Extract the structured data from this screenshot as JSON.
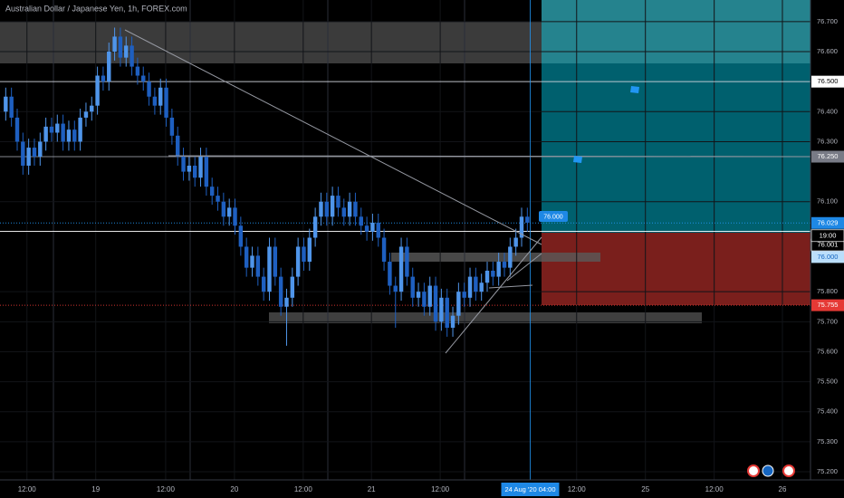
{
  "chart_data": {
    "type": "candlestick",
    "title": "Australian Dollar / Japanese Yen, 1h, FOREX.com",
    "x": [
      1,
      2,
      3,
      4,
      5,
      6,
      7,
      8,
      9,
      10,
      11,
      12,
      13,
      14,
      15,
      16,
      17,
      18,
      19,
      20,
      21,
      22,
      23,
      24,
      25,
      26,
      27,
      28,
      29,
      30,
      31,
      32,
      33,
      34,
      35,
      36,
      37,
      38,
      39,
      40,
      41,
      42,
      43,
      44,
      45,
      46,
      47,
      48,
      49,
      50,
      51,
      52,
      53,
      54,
      55,
      56,
      57,
      58,
      59,
      60,
      61,
      62,
      63,
      64,
      65,
      66,
      67,
      68,
      69,
      70,
      71,
      72,
      73,
      74,
      75,
      76,
      77,
      78,
      79,
      80,
      81,
      82,
      83,
      84,
      85,
      86,
      87,
      88,
      89,
      90,
      91,
      92
    ],
    "open": [
      76.4,
      76.45,
      76.38,
      76.3,
      76.22,
      76.28,
      76.25,
      76.3,
      76.35,
      76.33,
      76.36,
      76.3,
      76.34,
      76.3,
      76.38,
      76.4,
      76.42,
      76.52,
      76.5,
      76.6,
      76.65,
      76.58,
      76.62,
      76.55,
      76.52,
      76.5,
      76.45,
      76.42,
      76.48,
      76.38,
      76.32,
      76.25,
      76.2,
      76.22,
      76.18,
      76.25,
      76.15,
      76.12,
      76.1,
      76.05,
      76.08,
      76.02,
      75.95,
      75.88,
      75.92,
      75.85,
      75.8,
      75.95,
      75.85,
      75.75,
      75.78,
      75.85,
      75.95,
      75.9,
      75.98,
      76.05,
      76.1,
      76.05,
      76.12,
      76.08,
      76.05,
      76.1,
      76.05,
      76.02,
      76.0,
      76.03,
      75.98,
      75.9,
      75.82,
      75.8,
      75.95,
      75.85,
      75.78,
      75.8,
      75.75,
      75.82,
      75.7,
      75.78,
      75.68,
      75.72,
      75.8,
      75.78,
      75.85,
      75.8,
      75.83,
      75.87,
      75.85,
      75.9,
      75.88,
      75.95,
      75.98,
      76.05
    ],
    "high": [
      76.48,
      76.48,
      76.41,
      76.33,
      76.31,
      76.31,
      76.33,
      76.38,
      76.38,
      76.39,
      76.39,
      76.37,
      76.37,
      76.41,
      76.43,
      76.45,
      76.55,
      76.55,
      76.63,
      76.68,
      76.68,
      76.65,
      76.65,
      76.58,
      76.55,
      76.53,
      76.48,
      76.51,
      76.51,
      76.41,
      76.35,
      76.28,
      76.25,
      76.25,
      76.28,
      76.28,
      76.18,
      76.15,
      76.13,
      76.11,
      76.11,
      76.05,
      75.98,
      75.95,
      75.95,
      75.88,
      75.98,
      75.98,
      75.88,
      75.81,
      75.88,
      75.98,
      75.98,
      76.01,
      76.08,
      76.13,
      76.13,
      76.15,
      76.15,
      76.11,
      76.13,
      76.13,
      76.08,
      76.05,
      76.06,
      76.06,
      76.01,
      75.93,
      75.85,
      75.98,
      75.98,
      75.88,
      75.83,
      75.83,
      75.85,
      75.85,
      75.81,
      75.81,
      75.75,
      75.83,
      75.83,
      75.88,
      75.88,
      75.86,
      75.9,
      75.9,
      75.93,
      75.93,
      75.98,
      76.01,
      76.08,
      76.08
    ],
    "low": [
      76.37,
      76.35,
      76.27,
      76.19,
      76.19,
      76.22,
      76.22,
      76.27,
      76.3,
      76.3,
      76.27,
      76.27,
      76.27,
      76.27,
      76.35,
      76.37,
      76.39,
      76.47,
      76.47,
      76.57,
      76.55,
      76.55,
      76.52,
      76.49,
      76.47,
      76.42,
      76.39,
      76.39,
      76.35,
      76.29,
      76.22,
      76.17,
      76.17,
      76.15,
      76.15,
      76.12,
      76.09,
      76.07,
      76.02,
      76.02,
      75.99,
      75.92,
      75.85,
      75.85,
      75.82,
      75.77,
      75.77,
      75.82,
      75.72,
      75.62,
      75.75,
      75.82,
      75.87,
      75.87,
      75.95,
      76.02,
      76.02,
      76.02,
      76.05,
      76.02,
      76.02,
      76.02,
      75.99,
      75.97,
      75.97,
      75.95,
      75.87,
      75.79,
      75.68,
      75.77,
      75.82,
      75.75,
      75.75,
      75.72,
      75.72,
      75.67,
      75.67,
      75.65,
      75.65,
      75.69,
      75.75,
      75.75,
      75.77,
      75.77,
      75.8,
      75.82,
      75.82,
      75.85,
      75.85,
      75.92,
      75.95,
      76.0
    ],
    "close": [
      76.45,
      76.38,
      76.3,
      76.22,
      76.28,
      76.25,
      76.3,
      76.35,
      76.33,
      76.36,
      76.3,
      76.34,
      76.3,
      76.38,
      76.4,
      76.42,
      76.52,
      76.5,
      76.6,
      76.65,
      76.58,
      76.62,
      76.55,
      76.52,
      76.5,
      76.45,
      76.42,
      76.48,
      76.38,
      76.32,
      76.25,
      76.2,
      76.22,
      76.18,
      76.25,
      76.15,
      76.12,
      76.1,
      76.05,
      76.08,
      76.02,
      75.95,
      75.88,
      75.92,
      75.85,
      75.8,
      75.95,
      75.85,
      75.75,
      75.78,
      75.85,
      75.95,
      75.9,
      75.98,
      76.05,
      76.1,
      76.05,
      76.12,
      76.08,
      76.05,
      76.1,
      76.05,
      76.02,
      76.0,
      76.03,
      75.98,
      75.9,
      75.82,
      75.8,
      75.95,
      75.85,
      75.78,
      75.8,
      75.75,
      75.82,
      75.7,
      75.78,
      75.68,
      75.72,
      75.8,
      75.78,
      75.85,
      75.8,
      75.83,
      75.87,
      75.85,
      75.9,
      75.88,
      75.95,
      75.98,
      76.05,
      76.03
    ],
    "up_color": "#4f95ea",
    "down_color": "#1e5fc0",
    "xlim": [
      0,
      141.4
    ],
    "ylim": [
      75.173,
      76.772
    ],
    "xticks": [
      {
        "value": 4.7,
        "label": "12:00"
      },
      {
        "value": 16.7,
        "label": "19"
      },
      {
        "value": 28.9,
        "label": "12:00"
      },
      {
        "value": 40.9,
        "label": "20"
      },
      {
        "value": 52.9,
        "label": "12:00"
      },
      {
        "value": 64.8,
        "label": "21"
      },
      {
        "value": 76.8,
        "label": "12:00"
      },
      {
        "value": 100.6,
        "label": "12:00"
      },
      {
        "value": 112.6,
        "label": "25"
      },
      {
        "value": 124.6,
        "label": "12:00"
      },
      {
        "value": 136.5,
        "label": "26"
      }
    ],
    "yticks": [
      {
        "value": 76.7,
        "label": "76.700"
      },
      {
        "value": 76.6,
        "label": "76.600"
      },
      {
        "value": 76.4,
        "label": "76.400"
      },
      {
        "value": 76.3,
        "label": "76.300"
      },
      {
        "value": 76.1,
        "label": "76.100"
      },
      {
        "value": 75.8,
        "label": "75.800"
      },
      {
        "value": 75.7,
        "label": "75.700"
      },
      {
        "value": 75.6,
        "label": "75.600"
      },
      {
        "value": 75.5,
        "label": "75.500"
      },
      {
        "value": 75.4,
        "label": "75.400"
      },
      {
        "value": 75.3,
        "label": "75.300"
      },
      {
        "value": 75.2,
        "label": "75.200"
      }
    ],
    "price_lines": [
      {
        "value": 76.5,
        "label": "76.500",
        "color": "#d1d4dc"
      },
      {
        "value": 76.25,
        "label": "76.250",
        "color": "#9598a1"
      },
      {
        "value": 76.029,
        "label": "76.029",
        "color": "#2196f3"
      },
      {
        "value": 76.001,
        "label": "76.001",
        "color": "#ffffff"
      },
      {
        "value": 76.0,
        "label": "76.000",
        "color": "#bbdefb"
      },
      {
        "value": 75.755,
        "label": "75.755",
        "color": "#e53935"
      }
    ],
    "countdown": "19:00",
    "crosshair_label": "24 Aug '20  04:00",
    "crosshair_x": 92.5,
    "entry_label": "76.000"
  }
}
